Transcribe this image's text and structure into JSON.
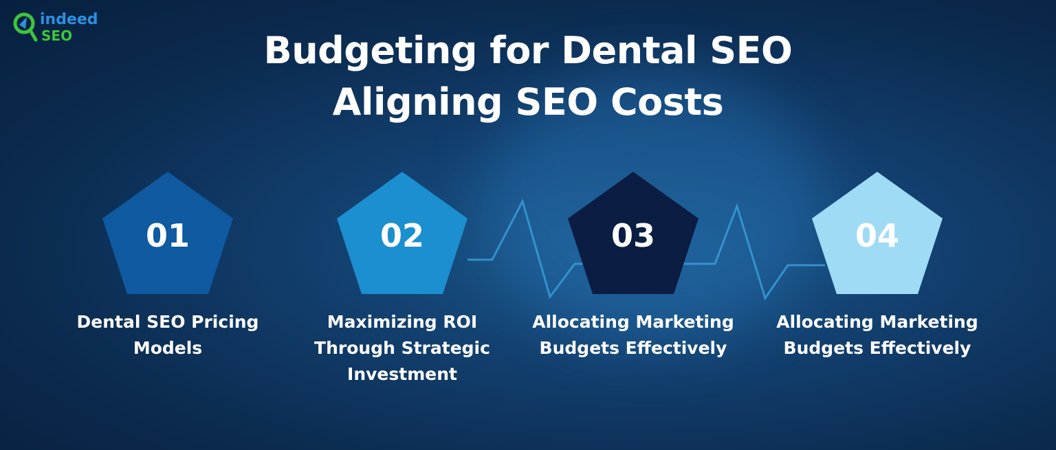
{
  "logo": {
    "line1": "indeed",
    "line2": "SEO",
    "colors": {
      "primary": "#2f8fe0",
      "secondary": "#3fc63c"
    }
  },
  "title": {
    "line1": "Budgeting for Dental SEO",
    "line2": "Aligning SEO Costs"
  },
  "steps": [
    {
      "number": "01",
      "label": "Dental SEO Pricing Models",
      "color": "#0f5aa0"
    },
    {
      "number": "02",
      "label": "Maximizing ROI Through Strategic Investment",
      "color": "#1b8fcf"
    },
    {
      "number": "03",
      "label": "Allocating Marketing Budgets Effectively",
      "color": "#0b1d42"
    },
    {
      "number": "04",
      "label": "Allocating Marketing Budgets Effectively",
      "color": "#9fdbf5"
    }
  ]
}
